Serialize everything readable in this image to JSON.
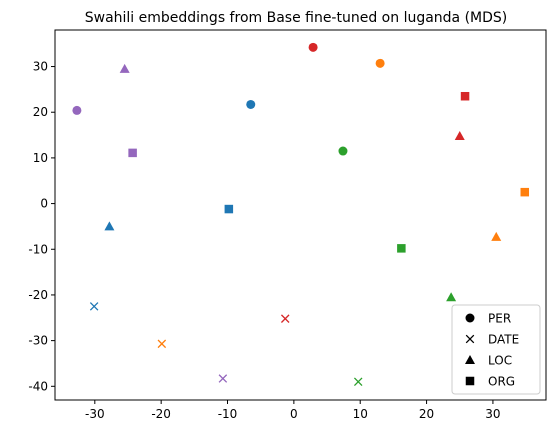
{
  "chart_data": {
    "type": "scatter",
    "title": "Swahili embeddings from Base fine-tuned on luganda (MDS)",
    "xlabel": "",
    "ylabel": "",
    "xlim": [
      -36,
      38
    ],
    "ylim": [
      -43,
      38
    ],
    "xticks": [
      -30,
      -20,
      -10,
      0,
      10,
      20,
      30
    ],
    "yticks": [
      -40,
      -30,
      -20,
      -10,
      0,
      10,
      20,
      30
    ],
    "grid": false,
    "legend": {
      "placement": "lower-right",
      "entries": [
        {
          "label": "PER",
          "marker": "circle"
        },
        {
          "label": "DATE",
          "marker": "x"
        },
        {
          "label": "LOC",
          "marker": "triangle"
        },
        {
          "label": "ORG",
          "marker": "square"
        }
      ]
    },
    "points": [
      {
        "x": -32.7,
        "y": 20.4,
        "marker": "circle",
        "color": "#9467bd"
      },
      {
        "x": -6.5,
        "y": 21.7,
        "marker": "circle",
        "color": "#1f77b4"
      },
      {
        "x": 2.9,
        "y": 34.2,
        "marker": "circle",
        "color": "#d62728"
      },
      {
        "x": 7.4,
        "y": 11.5,
        "marker": "circle",
        "color": "#2ca02c"
      },
      {
        "x": 13.0,
        "y": 30.7,
        "marker": "circle",
        "color": "#ff7f0e"
      },
      {
        "x": -25.5,
        "y": 29.5,
        "marker": "triangle",
        "color": "#9467bd"
      },
      {
        "x": -27.8,
        "y": -5.0,
        "marker": "triangle",
        "color": "#1f77b4"
      },
      {
        "x": 25.0,
        "y": 14.8,
        "marker": "triangle",
        "color": "#d62728"
      },
      {
        "x": 23.7,
        "y": -20.5,
        "marker": "triangle",
        "color": "#2ca02c"
      },
      {
        "x": 30.5,
        "y": -7.3,
        "marker": "triangle",
        "color": "#ff7f0e"
      },
      {
        "x": -24.3,
        "y": 11.1,
        "marker": "square",
        "color": "#9467bd"
      },
      {
        "x": -9.8,
        "y": -1.2,
        "marker": "square",
        "color": "#1f77b4"
      },
      {
        "x": 25.8,
        "y": 23.5,
        "marker": "square",
        "color": "#d62728"
      },
      {
        "x": 16.2,
        "y": -9.8,
        "marker": "square",
        "color": "#2ca02c"
      },
      {
        "x": 34.8,
        "y": 2.5,
        "marker": "square",
        "color": "#ff7f0e"
      },
      {
        "x": -30.1,
        "y": -22.5,
        "marker": "x",
        "color": "#1f77b4"
      },
      {
        "x": -19.9,
        "y": -30.7,
        "marker": "x",
        "color": "#ff7f0e"
      },
      {
        "x": -10.7,
        "y": -38.3,
        "marker": "x",
        "color": "#9467bd"
      },
      {
        "x": -1.3,
        "y": -25.2,
        "marker": "x",
        "color": "#d62728"
      },
      {
        "x": 9.7,
        "y": -39.0,
        "marker": "x",
        "color": "#2ca02c"
      }
    ]
  }
}
